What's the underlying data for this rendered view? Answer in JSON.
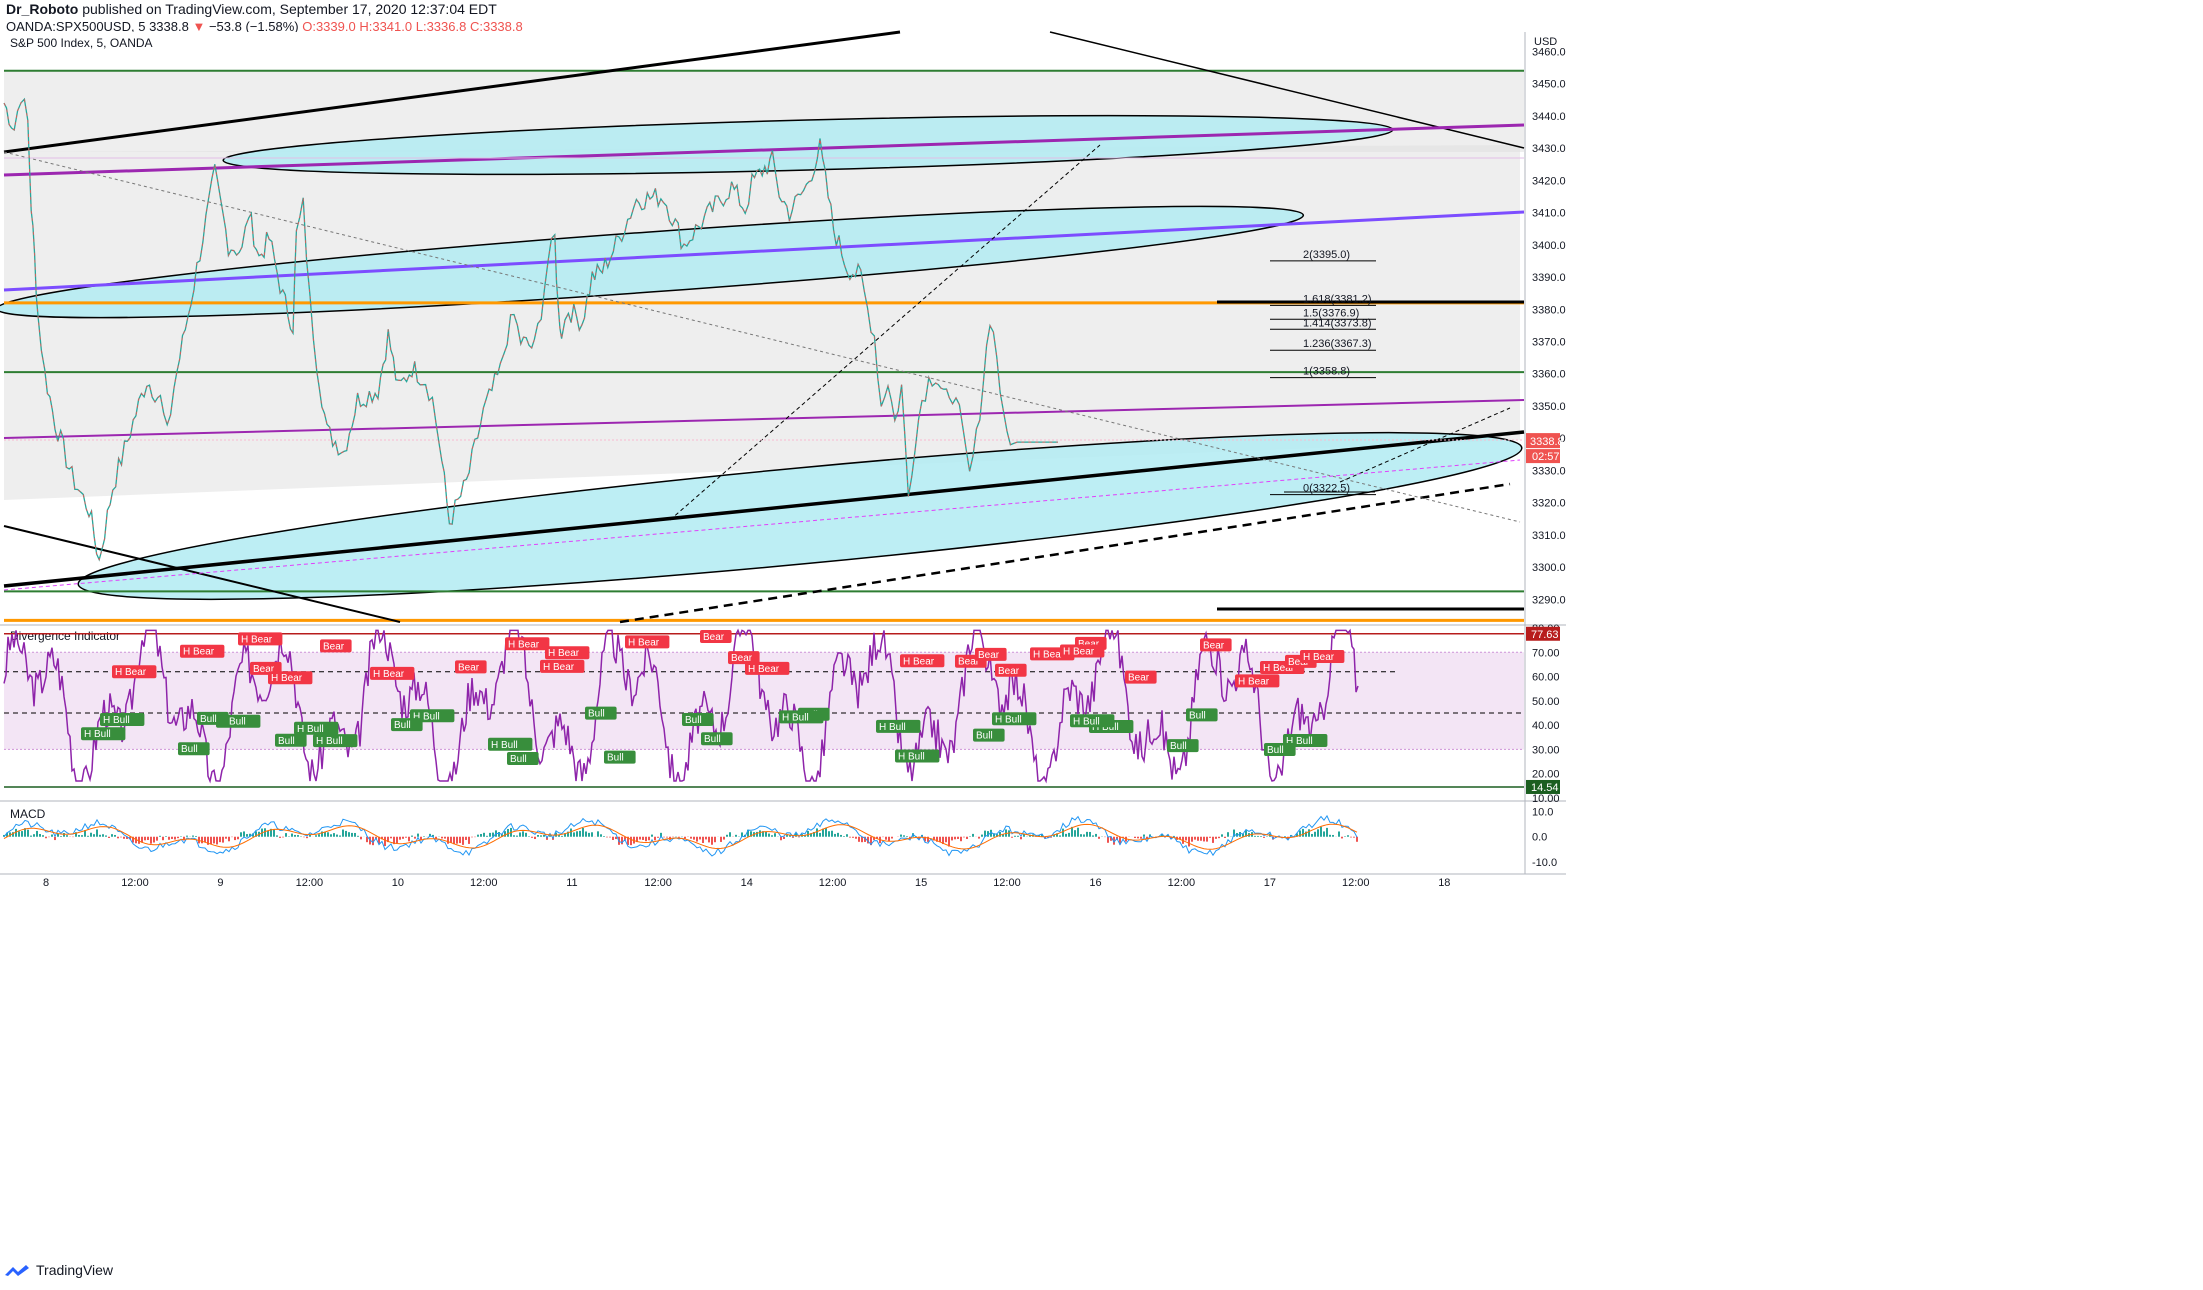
{
  "header": {
    "author": "Dr_Roboto",
    "published": "published on TradingView.com, September 17, 2020 12:37:04 EDT",
    "symbol": "OANDA:SPX500USD, 5",
    "last": "3338.8",
    "change": "−53.8 (−1.58%)",
    "o": "O:3339.0",
    "h": "H:3341.0",
    "l": "L:3336.8",
    "c": "C:3338.8",
    "down_color": "#ef5350"
  },
  "footer": {
    "brand": "TradingView",
    "logo_icon": "tradingview-logo-icon"
  },
  "colors": {
    "price_axis_tag": "#ef5350",
    "div_top_tag": "#b71c1c",
    "div_bottom_tag": "#1b5e20",
    "channel_fill": "#b2ebf2",
    "purple_line": "#9c27b0",
    "orange_line": "#ff9800",
    "green_line": "#2e7d32",
    "bull_label": "#388e3c",
    "bear_label": "#f23645"
  },
  "chart_data": [
    {
      "type": "line",
      "title": "S&P 500 Index, 5, OANDA",
      "y_axis_unit": "USD",
      "ylim": [
        3283,
        3466
      ],
      "y_ticks": [
        3290,
        3300,
        3310,
        3320,
        3330,
        3340,
        3350,
        3360,
        3370,
        3380,
        3390,
        3400,
        3410,
        3420,
        3430,
        3440,
        3450,
        3460
      ],
      "x_ticks": [
        "8",
        "12:00",
        "9",
        "12:00",
        "10",
        "12:00",
        "11",
        "12:00",
        "14",
        "12:00",
        "15",
        "12:00",
        "16",
        "12:00",
        "17",
        "12:00",
        "18"
      ],
      "price_path": {
        "x": [
          0,
          3,
          5,
          7,
          8,
          9,
          10,
          12,
          15,
          20,
          25,
          28,
          32,
          38,
          42,
          46,
          48,
          50,
          55,
          62,
          66,
          70,
          72,
          75,
          78,
          82,
          85,
          86,
          88,
          90,
          92,
          95,
          100,
          104,
          110,
          113,
          116,
          120,
          124,
          126,
          128,
          131,
          136,
          141,
          146,
          148,
          150,
          152,
          156,
          158,
          160,
          162,
          163,
          164,
          166,
          170,
          173,
          176,
          180,
          186,
          194,
          200,
          206,
          214,
          218,
          220,
          223,
          226,
          228,
          231,
          236,
          240,
          244,
          248,
          252,
          254,
          256,
          258,
          260,
          262,
          264,
          266,
          268,
          270,
          272,
          274,
          278,
          280,
          282,
          284,
          286,
          288,
          290,
          292,
          294,
          296,
          298,
          300,
          302,
          304,
          306,
          310
        ],
        "close": [
          3444,
          3436,
          3447,
          3438,
          3412,
          3396,
          3378,
          3360,
          3345,
          3328,
          3318,
          3302,
          3325,
          3345,
          3358,
          3352,
          3341,
          3356,
          3383,
          3422,
          3400,
          3398,
          3410,
          3396,
          3402,
          3384,
          3375,
          3403,
          3412,
          3382,
          3364,
          3342,
          3336,
          3352,
          3355,
          3372,
          3355,
          3362,
          3358,
          3352,
          3339,
          3314,
          3326,
          3348,
          3361,
          3372,
          3378,
          3370,
          3368,
          3380,
          3395,
          3402,
          3380,
          3373,
          3380,
          3376,
          3390,
          3392,
          3400,
          3414,
          3415,
          3400,
          3408,
          3418,
          3411,
          3419,
          3423,
          3426,
          3416,
          3410,
          3418,
          3430,
          3405,
          3393,
          3390,
          3380,
          3372,
          3350,
          3358,
          3345,
          3356,
          3322,
          3340,
          3352,
          3358,
          3360,
          3350,
          3356,
          3340,
          3328,
          3340,
          3358,
          3378,
          3366,
          3345,
          3338,
          3338.8,
          3338.8,
          3338.8,
          3338.8,
          3338.8,
          3338.8
        ]
      },
      "current_price_label": "3338.8",
      "countdown": "02:57",
      "fibonacci_levels": [
        {
          "label": "2(3395.0)",
          "value": 3395.0
        },
        {
          "label": "1.618(3381.2)",
          "value": 3381.2
        },
        {
          "label": "1.5(3376.9)",
          "value": 3376.9
        },
        {
          "label": "1.414(3373.8)",
          "value": 3373.8
        },
        {
          "label": "1.236(3367.3)",
          "value": 3367.3
        },
        {
          "label": "1(3358.8)",
          "value": 3358.8
        },
        {
          "label": "0(3322.5)",
          "value": 3322.5
        }
      ],
      "horizontal_levels": [
        {
          "value": 3454,
          "color": "green"
        },
        {
          "value": 3382,
          "color": "orange"
        },
        {
          "value": 3360.5,
          "color": "green"
        },
        {
          "value": 3292.5,
          "color": "green"
        },
        {
          "value": 3283.5,
          "color": "orange"
        }
      ]
    },
    {
      "type": "line",
      "title": "Divergence Indicator",
      "ylim": [
        10,
        80
      ],
      "y_ticks": [
        10.0,
        20.0,
        30.0,
        40.0,
        50.0,
        60.0,
        70.0,
        80.0
      ],
      "upper_tag": "77.63",
      "lower_tag": "14.54",
      "band": [
        30,
        70
      ],
      "labels": [
        "H Bear",
        "H Bear",
        "Bear",
        "H Bear",
        "H Bear",
        "Bear",
        "H Bear",
        "Bear",
        "H Bear",
        "H Bear",
        "H Bear",
        "H Bear",
        "Bear",
        "Bear",
        "H Bear",
        "H Bear",
        "Bear",
        "Bear",
        "Bear",
        "Bear",
        "Bear",
        "Bear",
        "H Bear",
        "H Bear",
        "Bear",
        "H Bear",
        "H Bear",
        "H Bear",
        "H Bull",
        "H Bull",
        "H Bull",
        "Bull",
        "Bull",
        "Bull",
        "Bull",
        "H Bull",
        "H Bull",
        "H Bull",
        "Bull",
        "H Bull",
        "H Bull",
        "Bull",
        "H Bull",
        "Bull",
        "H Bull",
        "Bull",
        "Bull",
        "H Bull",
        "H Bull",
        "Bull",
        "H Bull",
        "Bull",
        "Bull",
        "H Bull",
        "Bull",
        "Bull"
      ]
    },
    {
      "type": "line",
      "title": "MACD",
      "ylim": [
        -14,
        13
      ],
      "y_ticks": [
        10.0,
        0.0,
        -10.0
      ]
    }
  ]
}
